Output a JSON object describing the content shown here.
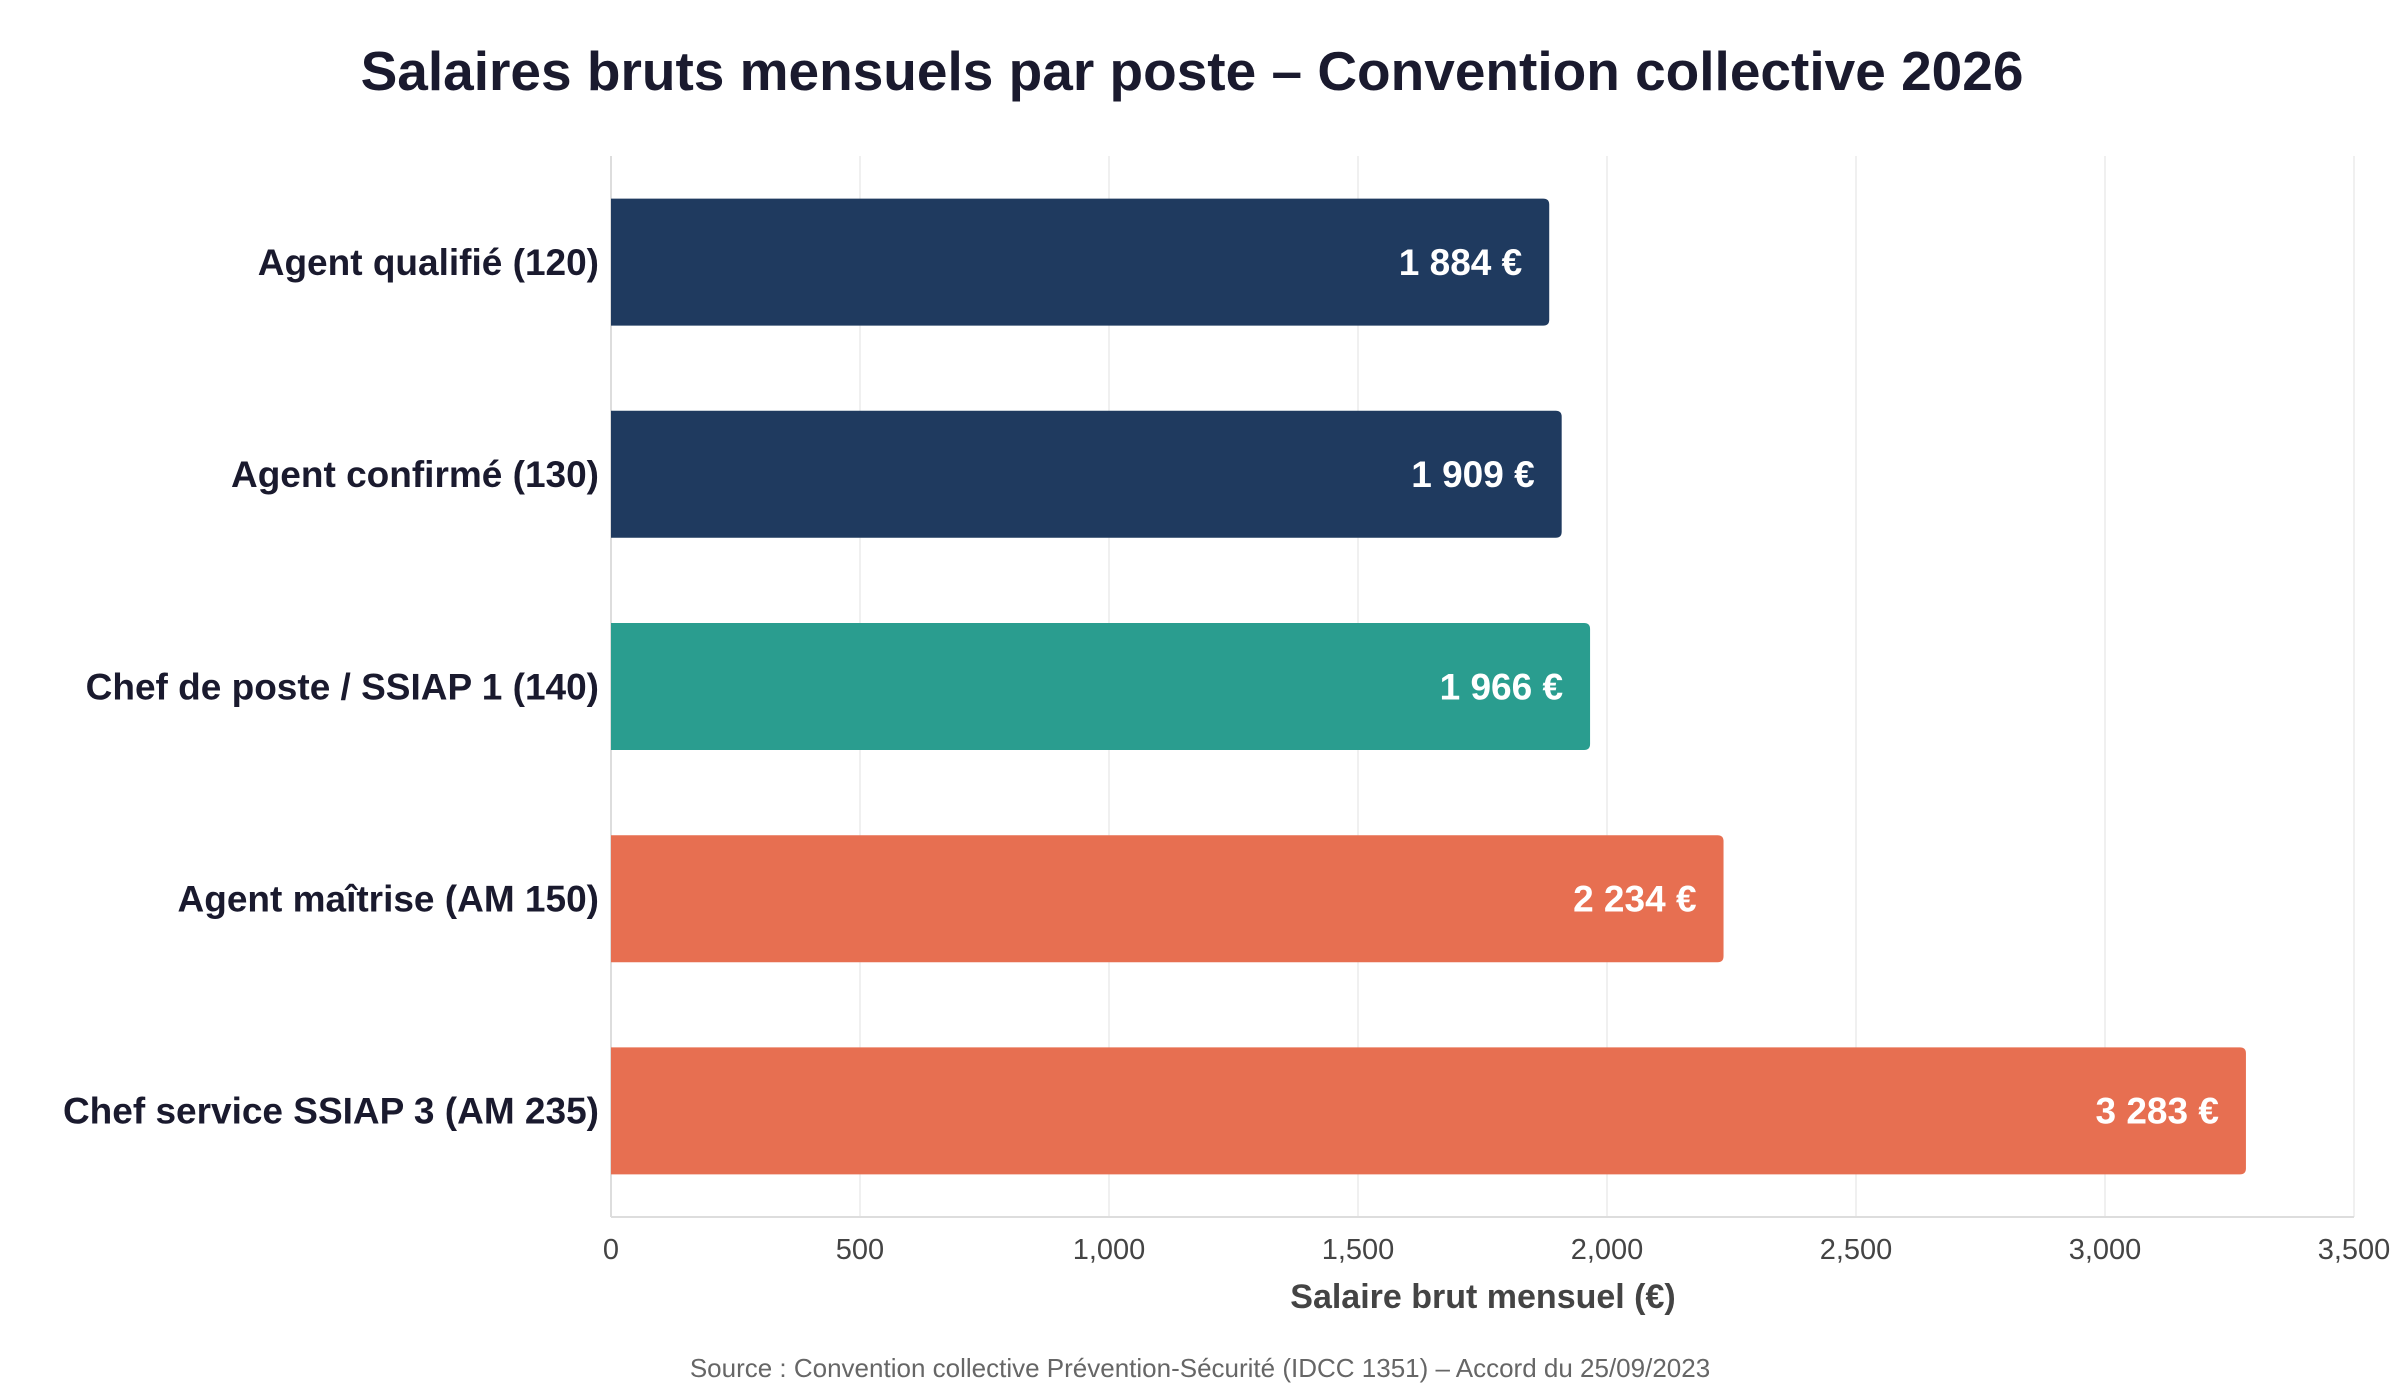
{
  "chart_data": {
    "type": "bar",
    "orientation": "horizontal",
    "title": "Salaires bruts mensuels par poste – Convention collective 2026",
    "xlabel": "Salaire brut mensuel (€)",
    "ylabel": "",
    "categories": [
      "Agent qualifié (120)",
      "Agent confirmé (130)",
      "Chef de poste / SSIAP 1 (140)",
      "Agent maîtrise (AM 150)",
      "Chef service SSIAP 3 (AM 235)"
    ],
    "values": [
      1884,
      1909,
      1966,
      2234,
      3283
    ],
    "data_labels": [
      "1 884 €",
      "1 909 €",
      "1 966 €",
      "2 234 €",
      "3 283 €"
    ],
    "bar_colors": [
      "#1f3a5f",
      "#1f3a5f",
      "#2a9d8f",
      "#e76f51",
      "#e76f51"
    ],
    "xlim": [
      0,
      3500
    ],
    "xticks": [
      0,
      500,
      1000,
      1500,
      2000,
      2500,
      3000,
      3500
    ],
    "xtick_labels": [
      "0",
      "500",
      "1,000",
      "1,500",
      "2,000",
      "2,500",
      "3,000",
      "3,500"
    ],
    "grid": "vertical",
    "legend": "none",
    "source": "Source : Convention collective Prévention-Sécurité (IDCC 1351) – Accord du 25/09/2023"
  }
}
